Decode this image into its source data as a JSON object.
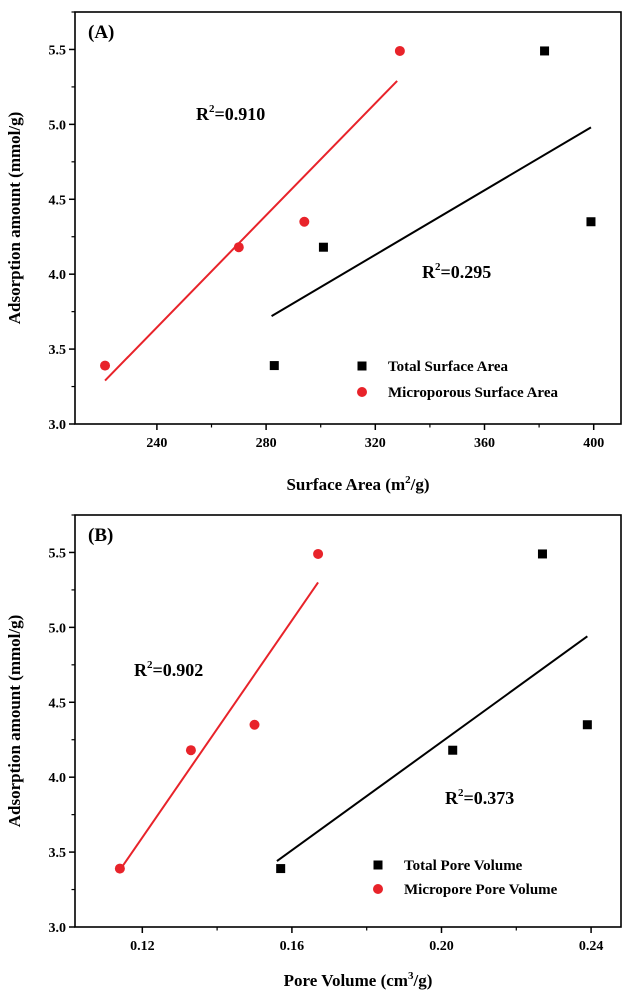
{
  "chart_data": [
    {
      "panel": "(A)",
      "type": "scatter",
      "xlabel": "Surface Area (m",
      "xlabel_sup": "2",
      "xlabel_end": "/g)",
      "ylabel": "Adsorption amount (mmol/g)",
      "xlim": [
        210,
        410
      ],
      "ylim": [
        3.0,
        5.75
      ],
      "xticks": [
        240,
        280,
        320,
        360,
        400
      ],
      "xtick_labels": [
        "240",
        "280",
        "320",
        "360",
        "400"
      ],
      "yticks": [
        3.0,
        3.5,
        4.0,
        4.5,
        5.0,
        5.5
      ],
      "ytick_labels": [
        "3.0",
        "3.5",
        "4.0",
        "4.5",
        "5.0",
        "5.5"
      ],
      "series": [
        {
          "name": "Total Surface Area",
          "marker": "square",
          "color": "#000000",
          "points": [
            [
              283,
              3.39
            ],
            [
              301,
              4.18
            ],
            [
              382,
              5.49
            ],
            [
              399,
              4.35
            ]
          ],
          "fit": [
            [
              282,
              3.72
            ],
            [
              399,
              4.98
            ]
          ]
        },
        {
          "name": "Microporous Surface Area",
          "marker": "circle",
          "color": "#e8232a",
          "points": [
            [
              221,
              3.39
            ],
            [
              270,
              4.18
            ],
            [
              294,
              4.35
            ],
            [
              329,
              5.49
            ]
          ],
          "fit": [
            [
              221,
              3.29
            ],
            [
              328,
              5.29
            ]
          ]
        }
      ],
      "annotations": [
        {
          "prefix": "R",
          "sup": "2",
          "value": "=0.910",
          "color": "#000000"
        },
        {
          "prefix": "R",
          "sup": "2",
          "value": "=0.295",
          "color": "#000000"
        }
      ]
    },
    {
      "panel": "(B)",
      "type": "scatter",
      "xlabel": "Pore Volume (cm",
      "xlabel_sup": "3",
      "xlabel_end": "/g)",
      "ylabel": "Adsorption amount (mmol/g)",
      "xlim": [
        0.102,
        0.248
      ],
      "ylim": [
        3.0,
        5.75
      ],
      "xticks": [
        0.12,
        0.16,
        0.2,
        0.24
      ],
      "xtick_labels": [
        "0.12",
        "0.16",
        "0.20",
        "0.24"
      ],
      "yticks": [
        3.0,
        3.5,
        4.0,
        4.5,
        5.0,
        5.5
      ],
      "ytick_labels": [
        "3.0",
        "3.5",
        "4.0",
        "4.5",
        "5.0",
        "5.5"
      ],
      "series": [
        {
          "name": "Total Pore Volume",
          "marker": "square",
          "color": "#000000",
          "points": [
            [
              0.157,
              3.39
            ],
            [
              0.203,
              4.18
            ],
            [
              0.227,
              5.49
            ],
            [
              0.239,
              4.35
            ]
          ],
          "fit": [
            [
              0.156,
              3.44
            ],
            [
              0.239,
              4.94
            ]
          ]
        },
        {
          "name": "Micropore Pore Volume",
          "marker": "circle",
          "color": "#e8232a",
          "points": [
            [
              0.114,
              3.39
            ],
            [
              0.133,
              4.18
            ],
            [
              0.15,
              4.35
            ],
            [
              0.167,
              5.49
            ]
          ],
          "fit": [
            [
              0.114,
              3.38
            ],
            [
              0.167,
              5.3
            ]
          ]
        }
      ],
      "annotations": [
        {
          "prefix": "R",
          "sup": "2",
          "value": "=0.902",
          "color": "#000000"
        },
        {
          "prefix": "R",
          "sup": "2",
          "value": "=0.373",
          "color": "#000000"
        }
      ]
    }
  ]
}
